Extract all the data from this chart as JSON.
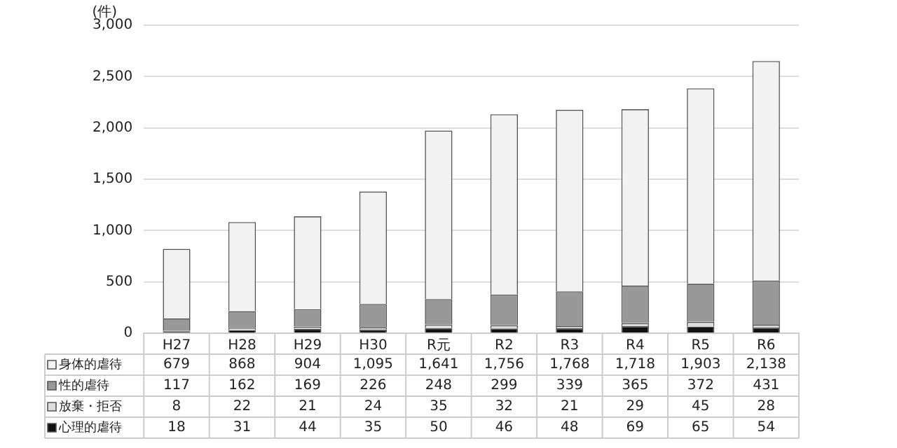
{
  "chart_data": {
    "type": "bar",
    "stacked": true,
    "ylabel": "(件)",
    "categories": [
      "H27",
      "H28",
      "H29",
      "H30",
      "R元",
      "R2",
      "R3",
      "R4",
      "R5",
      "R6"
    ],
    "series": [
      {
        "name": "心理的虐待",
        "color": "#111111",
        "values": [
          18,
          31,
          44,
          35,
          50,
          46,
          48,
          69,
          65,
          54
        ],
        "value_labels": [
          "18",
          "31",
          "44",
          "35",
          "50",
          "46",
          "48",
          "69",
          "65",
          "54"
        ]
      },
      {
        "name": "放棄・拒否",
        "color": "#dddddd",
        "values": [
          8,
          22,
          21,
          24,
          35,
          32,
          21,
          29,
          45,
          28
        ],
        "value_labels": [
          "8",
          "22",
          "21",
          "24",
          "35",
          "32",
          "21",
          "29",
          "45",
          "28"
        ]
      },
      {
        "name": "性的虐待",
        "color": "#999999",
        "values": [
          117,
          162,
          169,
          226,
          248,
          299,
          339,
          365,
          372,
          431
        ],
        "value_labels": [
          "117",
          "162",
          "169",
          "226",
          "248",
          "299",
          "339",
          "365",
          "372",
          "431"
        ]
      },
      {
        "name": "身体的虐待",
        "color": "#f2f2f2",
        "values": [
          679,
          868,
          904,
          1095,
          1641,
          1756,
          1768,
          1718,
          1903,
          2138
        ],
        "value_labels": [
          "679",
          "868",
          "904",
          "1,095",
          "1,641",
          "1,756",
          "1,768",
          "1,718",
          "1,903",
          "2,138"
        ]
      }
    ],
    "ylim": [
      0,
      3000
    ],
    "yticks": [
      0,
      {
        "value": 500,
        "label": "500"
      },
      {
        "value": 1000,
        "label": "1,000"
      },
      {
        "value": 1500,
        "label": "1,500"
      },
      {
        "value": 2000,
        "label": "2,000"
      },
      {
        "value": 2500,
        "label": "2,500"
      },
      {
        "value": 3000,
        "label": "3,000"
      }
    ],
    "grid": "y",
    "legend": "bottom left"
  }
}
